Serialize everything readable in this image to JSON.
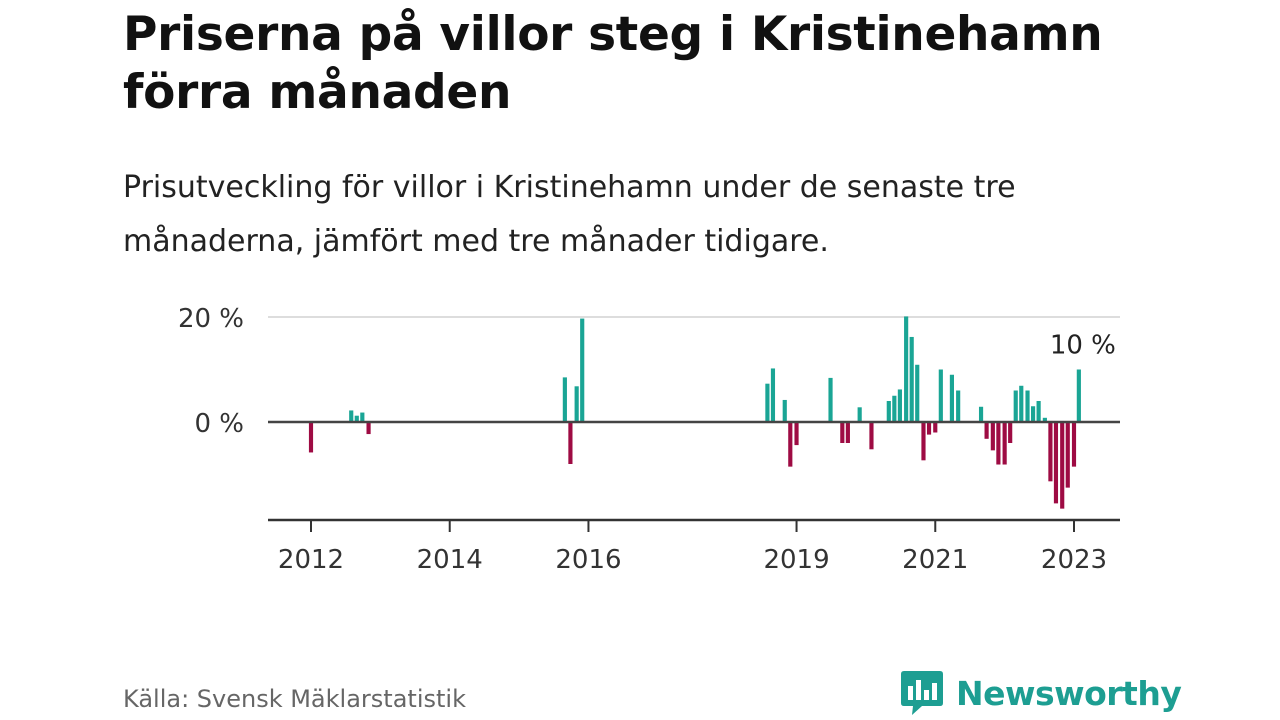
{
  "header": {
    "title": "Priserna på villor steg i Kristinehamn förra månaden",
    "subtitle": "Prisutveckling för villor i Kristinehamn under de senaste tre månaderna, jämfört med tre månader tidigare."
  },
  "footer": {
    "source": "Källa: Svensk Mäklarstatistik",
    "brand": "Newsworthy"
  },
  "colors": {
    "positive": "#1aa595",
    "negative": "#9e0b43",
    "brand": "#1d9e92"
  },
  "chart_data": {
    "type": "bar",
    "title": "Priserna på villor steg i Kristinehamn förra månaden",
    "subtitle": "Prisutveckling för villor i Kristinehamn under de senaste tre månaderna, jämfört med tre månader tidigare.",
    "x_ticks": [
      {
        "label": "2012",
        "x": 2012.0
      },
      {
        "label": "2014",
        "x": 2014.0
      },
      {
        "label": "2016",
        "x": 2016.0
      },
      {
        "label": "2019",
        "x": 2019.0
      },
      {
        "label": "2021",
        "x": 2021.0
      },
      {
        "label": "2023",
        "x": 2023.0
      }
    ],
    "y_ticks": [
      {
        "label": "0 %",
        "value": 0
      },
      {
        "label": "20 %",
        "value": 20
      }
    ],
    "ylim": [
      -19,
      21
    ],
    "xlim": [
      2011.4,
      2023.65
    ],
    "bar_width_years": 0.06,
    "annotation": {
      "label": "10 %",
      "x": 2023.07,
      "value": 10
    },
    "points": [
      {
        "x": 2012.0,
        "value": -5.8
      },
      {
        "x": 2012.58,
        "value": 2.2
      },
      {
        "x": 2012.66,
        "value": 1.2
      },
      {
        "x": 2012.74,
        "value": 1.8
      },
      {
        "x": 2012.83,
        "value": -2.3
      },
      {
        "x": 2015.66,
        "value": 8.5
      },
      {
        "x": 2015.74,
        "value": -8.0
      },
      {
        "x": 2015.83,
        "value": 6.8
      },
      {
        "x": 2015.91,
        "value": 19.7
      },
      {
        "x": 2018.58,
        "value": 7.3
      },
      {
        "x": 2018.66,
        "value": 10.2
      },
      {
        "x": 2018.83,
        "value": 4.2
      },
      {
        "x": 2018.91,
        "value": -8.5
      },
      {
        "x": 2019.0,
        "value": -4.4
      },
      {
        "x": 2019.49,
        "value": 8.4
      },
      {
        "x": 2019.66,
        "value": -4.0
      },
      {
        "x": 2019.74,
        "value": -4.0
      },
      {
        "x": 2019.91,
        "value": 2.8
      },
      {
        "x": 2020.08,
        "value": -5.2
      },
      {
        "x": 2020.33,
        "value": 4.0
      },
      {
        "x": 2020.41,
        "value": 5.0
      },
      {
        "x": 2020.49,
        "value": 6.2
      },
      {
        "x": 2020.58,
        "value": 20.1
      },
      {
        "x": 2020.66,
        "value": 16.2
      },
      {
        "x": 2020.74,
        "value": 10.9
      },
      {
        "x": 2020.83,
        "value": -7.3
      },
      {
        "x": 2020.91,
        "value": -2.4
      },
      {
        "x": 2021.0,
        "value": -2.0
      },
      {
        "x": 2021.08,
        "value": 10.0
      },
      {
        "x": 2021.24,
        "value": 9.0
      },
      {
        "x": 2021.33,
        "value": 6.0
      },
      {
        "x": 2021.66,
        "value": 2.9
      },
      {
        "x": 2021.74,
        "value": -3.2
      },
      {
        "x": 2021.83,
        "value": -5.4
      },
      {
        "x": 2021.91,
        "value": -8.1
      },
      {
        "x": 2022.0,
        "value": -8.1
      },
      {
        "x": 2022.08,
        "value": -4.0
      },
      {
        "x": 2022.16,
        "value": 6.0
      },
      {
        "x": 2022.24,
        "value": 6.9
      },
      {
        "x": 2022.33,
        "value": 6.0
      },
      {
        "x": 2022.41,
        "value": 3.0
      },
      {
        "x": 2022.49,
        "value": 4.0
      },
      {
        "x": 2022.58,
        "value": 0.8
      },
      {
        "x": 2022.66,
        "value": -11.3
      },
      {
        "x": 2022.74,
        "value": -15.5
      },
      {
        "x": 2022.83,
        "value": -16.5
      },
      {
        "x": 2022.91,
        "value": -12.5
      },
      {
        "x": 2023.0,
        "value": -8.5
      },
      {
        "x": 2023.07,
        "value": 10.0
      }
    ]
  }
}
